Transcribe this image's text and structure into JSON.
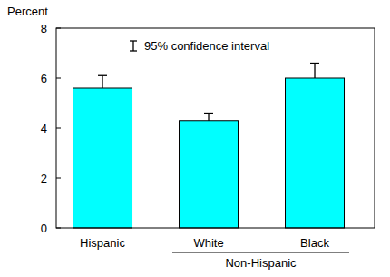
{
  "chart_data": {
    "type": "bar",
    "y_label": "Percent",
    "categories": [
      "Hispanic",
      "White",
      "Black"
    ],
    "values": [
      5.6,
      4.3,
      6.0
    ],
    "error_low": [
      5.2,
      4.1,
      5.4
    ],
    "error_high": [
      6.1,
      4.6,
      6.6
    ],
    "error_label": "95% confidence interval",
    "category_group": "Non-Hispanic",
    "category_group_members": [
      "White",
      "Black"
    ],
    "color": "#00ffff",
    "ylim": [
      0,
      8
    ],
    "yticks": [
      0,
      2,
      4,
      6,
      8
    ],
    "grid": false
  }
}
